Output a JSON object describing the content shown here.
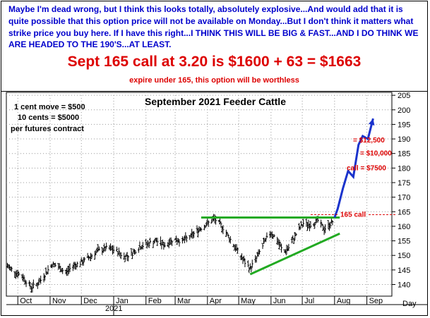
{
  "note": {
    "text": "Maybe I'm dead wrong, but I think this looks totally, absolutely explosive...And would add that it is quite possible that this option price will not be available on Monday...But I don't think it matters what strike price you buy here. If I have this right...I THINK THIS WILL BE BIG & FAST...AND I DO THINK WE ARE HEADED TO THE 190'S...AT LEAST.",
    "headline": "Sept 165 call at 3.20 is $1600 + 63 = $1663",
    "subline": "expire under 165, this option will be worthless"
  },
  "chart_data": {
    "type": "bar",
    "subtype": "ohlc-price-bars",
    "title": "September 2021 Feeder Cattle",
    "xlabel": "Day",
    "x_tick_labels": [
      "Oct",
      "Nov",
      "Dec",
      "Jan",
      "Feb",
      "Mar",
      "Apr",
      "May",
      "Jun",
      "Jul",
      "Aug",
      "Sep"
    ],
    "x_year_label": "2021",
    "y_tick_labels": [
      "140",
      "145",
      "150",
      "155",
      "160",
      "165",
      "170",
      "175",
      "180",
      "185",
      "190",
      "195",
      "200",
      "205"
    ],
    "ylim": [
      136,
      206
    ],
    "grid": true,
    "axis_side": "right",
    "contract_notes": [
      "1 cent move = $500",
      "10 cents = $5000",
      "per futures contract"
    ],
    "price_path": [
      {
        "x": "2020-09-20",
        "y": 146.5
      },
      {
        "x": "2020-09-28",
        "y": 144.5
      },
      {
        "x": "2020-10-06",
        "y": 142.5
      },
      {
        "x": "2020-10-14",
        "y": 139.0
      },
      {
        "x": "2020-10-21",
        "y": 140.5
      },
      {
        "x": "2020-10-28",
        "y": 144.0
      },
      {
        "x": "2020-11-03",
        "y": 147.0
      },
      {
        "x": "2020-11-09",
        "y": 146.0
      },
      {
        "x": "2020-11-16",
        "y": 144.0
      },
      {
        "x": "2020-11-23",
        "y": 146.5
      },
      {
        "x": "2020-12-01",
        "y": 147.5
      },
      {
        "x": "2020-12-09",
        "y": 149.5
      },
      {
        "x": "2020-12-17",
        "y": 151.5
      },
      {
        "x": "2020-12-26",
        "y": 152.5
      },
      {
        "x": "2021-01-04",
        "y": 151.5
      },
      {
        "x": "2021-01-11",
        "y": 149.5
      },
      {
        "x": "2021-01-18",
        "y": 150.5
      },
      {
        "x": "2021-01-26",
        "y": 153.0
      },
      {
        "x": "2021-02-03",
        "y": 154.0
      },
      {
        "x": "2021-02-11",
        "y": 155.0
      },
      {
        "x": "2021-02-19",
        "y": 153.5
      },
      {
        "x": "2021-02-27",
        "y": 155.5
      },
      {
        "x": "2021-03-08",
        "y": 155.0
      },
      {
        "x": "2021-03-16",
        "y": 156.5
      },
      {
        "x": "2021-03-24",
        "y": 159.0
      },
      {
        "x": "2021-04-01",
        "y": 161.0
      },
      {
        "x": "2021-04-08",
        "y": 162.5
      },
      {
        "x": "2021-04-15",
        "y": 160.0
      },
      {
        "x": "2021-04-22",
        "y": 156.0
      },
      {
        "x": "2021-04-29",
        "y": 152.0
      },
      {
        "x": "2021-05-06",
        "y": 148.0
      },
      {
        "x": "2021-05-12",
        "y": 145.5
      },
      {
        "x": "2021-05-18",
        "y": 149.0
      },
      {
        "x": "2021-05-25",
        "y": 154.0
      },
      {
        "x": "2021-06-01",
        "y": 158.0
      },
      {
        "x": "2021-06-07",
        "y": 155.0
      },
      {
        "x": "2021-06-13",
        "y": 151.0
      },
      {
        "x": "2021-06-19",
        "y": 153.0
      },
      {
        "x": "2021-06-26",
        "y": 158.0
      },
      {
        "x": "2021-07-02",
        "y": 161.0
      },
      {
        "x": "2021-07-09",
        "y": 160.5
      },
      {
        "x": "2021-07-16",
        "y": 162.0
      },
      {
        "x": "2021-07-22",
        "y": 159.0
      },
      {
        "x": "2021-07-27",
        "y": 160.5
      },
      {
        "x": "2021-08-01",
        "y": 162.5
      }
    ],
    "projection": [
      {
        "x": "2021-08-01",
        "y": 163
      },
      {
        "x": "2021-08-04",
        "y": 166
      },
      {
        "x": "2021-08-09",
        "y": 173
      },
      {
        "x": "2021-08-14",
        "y": 179
      },
      {
        "x": "2021-08-19",
        "y": 177
      },
      {
        "x": "2021-08-24",
        "y": 188
      },
      {
        "x": "2021-08-28",
        "y": 191
      },
      {
        "x": "2021-09-02",
        "y": 190
      },
      {
        "x": "2021-09-07",
        "y": 197
      }
    ],
    "resistance_line": {
      "y": 163,
      "x_start": "2021-03-26",
      "x_end": "2021-08-06"
    },
    "support_line": {
      "start": {
        "x": "2021-05-12",
        "y": 143.5
      },
      "end": {
        "x": "2021-08-06",
        "y": 157.5
      }
    },
    "annotations": [
      {
        "text": "165 call",
        "y": 164
      },
      {
        "text": "= $12,500",
        "y": 189.5
      },
      {
        "text": "= $10,000",
        "y": 185
      },
      {
        "text": "call = $7500",
        "y": 180
      }
    ],
    "colors": {
      "bars": "#000000",
      "trendlines": "#22aa22",
      "projection": "#1a33cc",
      "annotations": "#dd0000"
    }
  }
}
